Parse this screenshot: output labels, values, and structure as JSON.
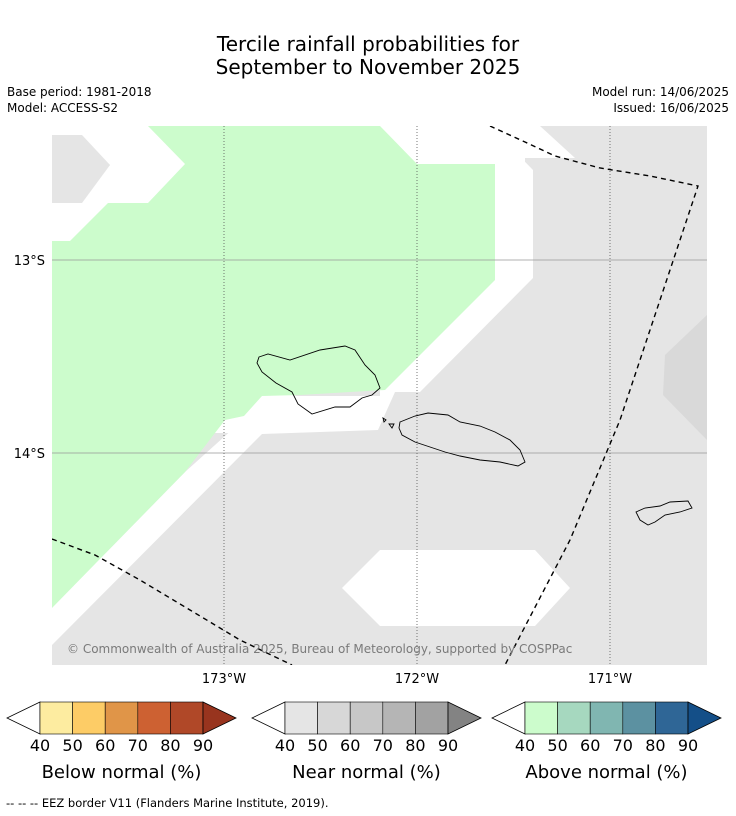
{
  "title": {
    "line1": "Tercile rainfall probabilities for",
    "line2": "September to November 2025"
  },
  "meta": {
    "base_period": "Base period: 1981-2018",
    "model": "Model: ACCESS-S2",
    "model_run": "Model run: 14/06/2025",
    "issued": "Issued: 16/06/2025"
  },
  "map": {
    "lat_labels": [
      "13°S",
      "14°S"
    ],
    "lon_labels": [
      "173°W",
      "172°W",
      "171°W"
    ],
    "copyright": "© Commonwealth of Australia 2025, Bureau of Meteorology, supported by COSPPac",
    "colors": {
      "above_normal_40": "#ccfccc",
      "near_normal_40": "#e5e5e5",
      "near_normal_50": "#d9d9d9",
      "no_signal": "#ffffff",
      "coastline": "#000000",
      "eez_border": "#000000"
    }
  },
  "colorbars": [
    {
      "label": "Below normal (%)",
      "ticks": [
        "40",
        "50",
        "60",
        "70",
        "80",
        "90"
      ],
      "colors": [
        "#fdeca0",
        "#fdcc66",
        "#e09548",
        "#cd6132",
        "#b04828",
        "#98341e"
      ]
    },
    {
      "label": "Near normal (%)",
      "ticks": [
        "40",
        "50",
        "60",
        "70",
        "80",
        "90"
      ],
      "colors": [
        "#e5e5e5",
        "#d7d7d7",
        "#c7c7c7",
        "#b5b5b5",
        "#a2a2a2",
        "#838383"
      ]
    },
    {
      "label": "Above normal (%)",
      "ticks": [
        "40",
        "50",
        "60",
        "70",
        "80",
        "90"
      ],
      "colors": [
        "#ccfccc",
        "#a6d8bf",
        "#80b6b1",
        "#5c91a1",
        "#2f6696",
        "#144f88"
      ]
    }
  ],
  "footer": "--  --  -- EEZ border V11 (Flanders Marine Institute, 2019)."
}
